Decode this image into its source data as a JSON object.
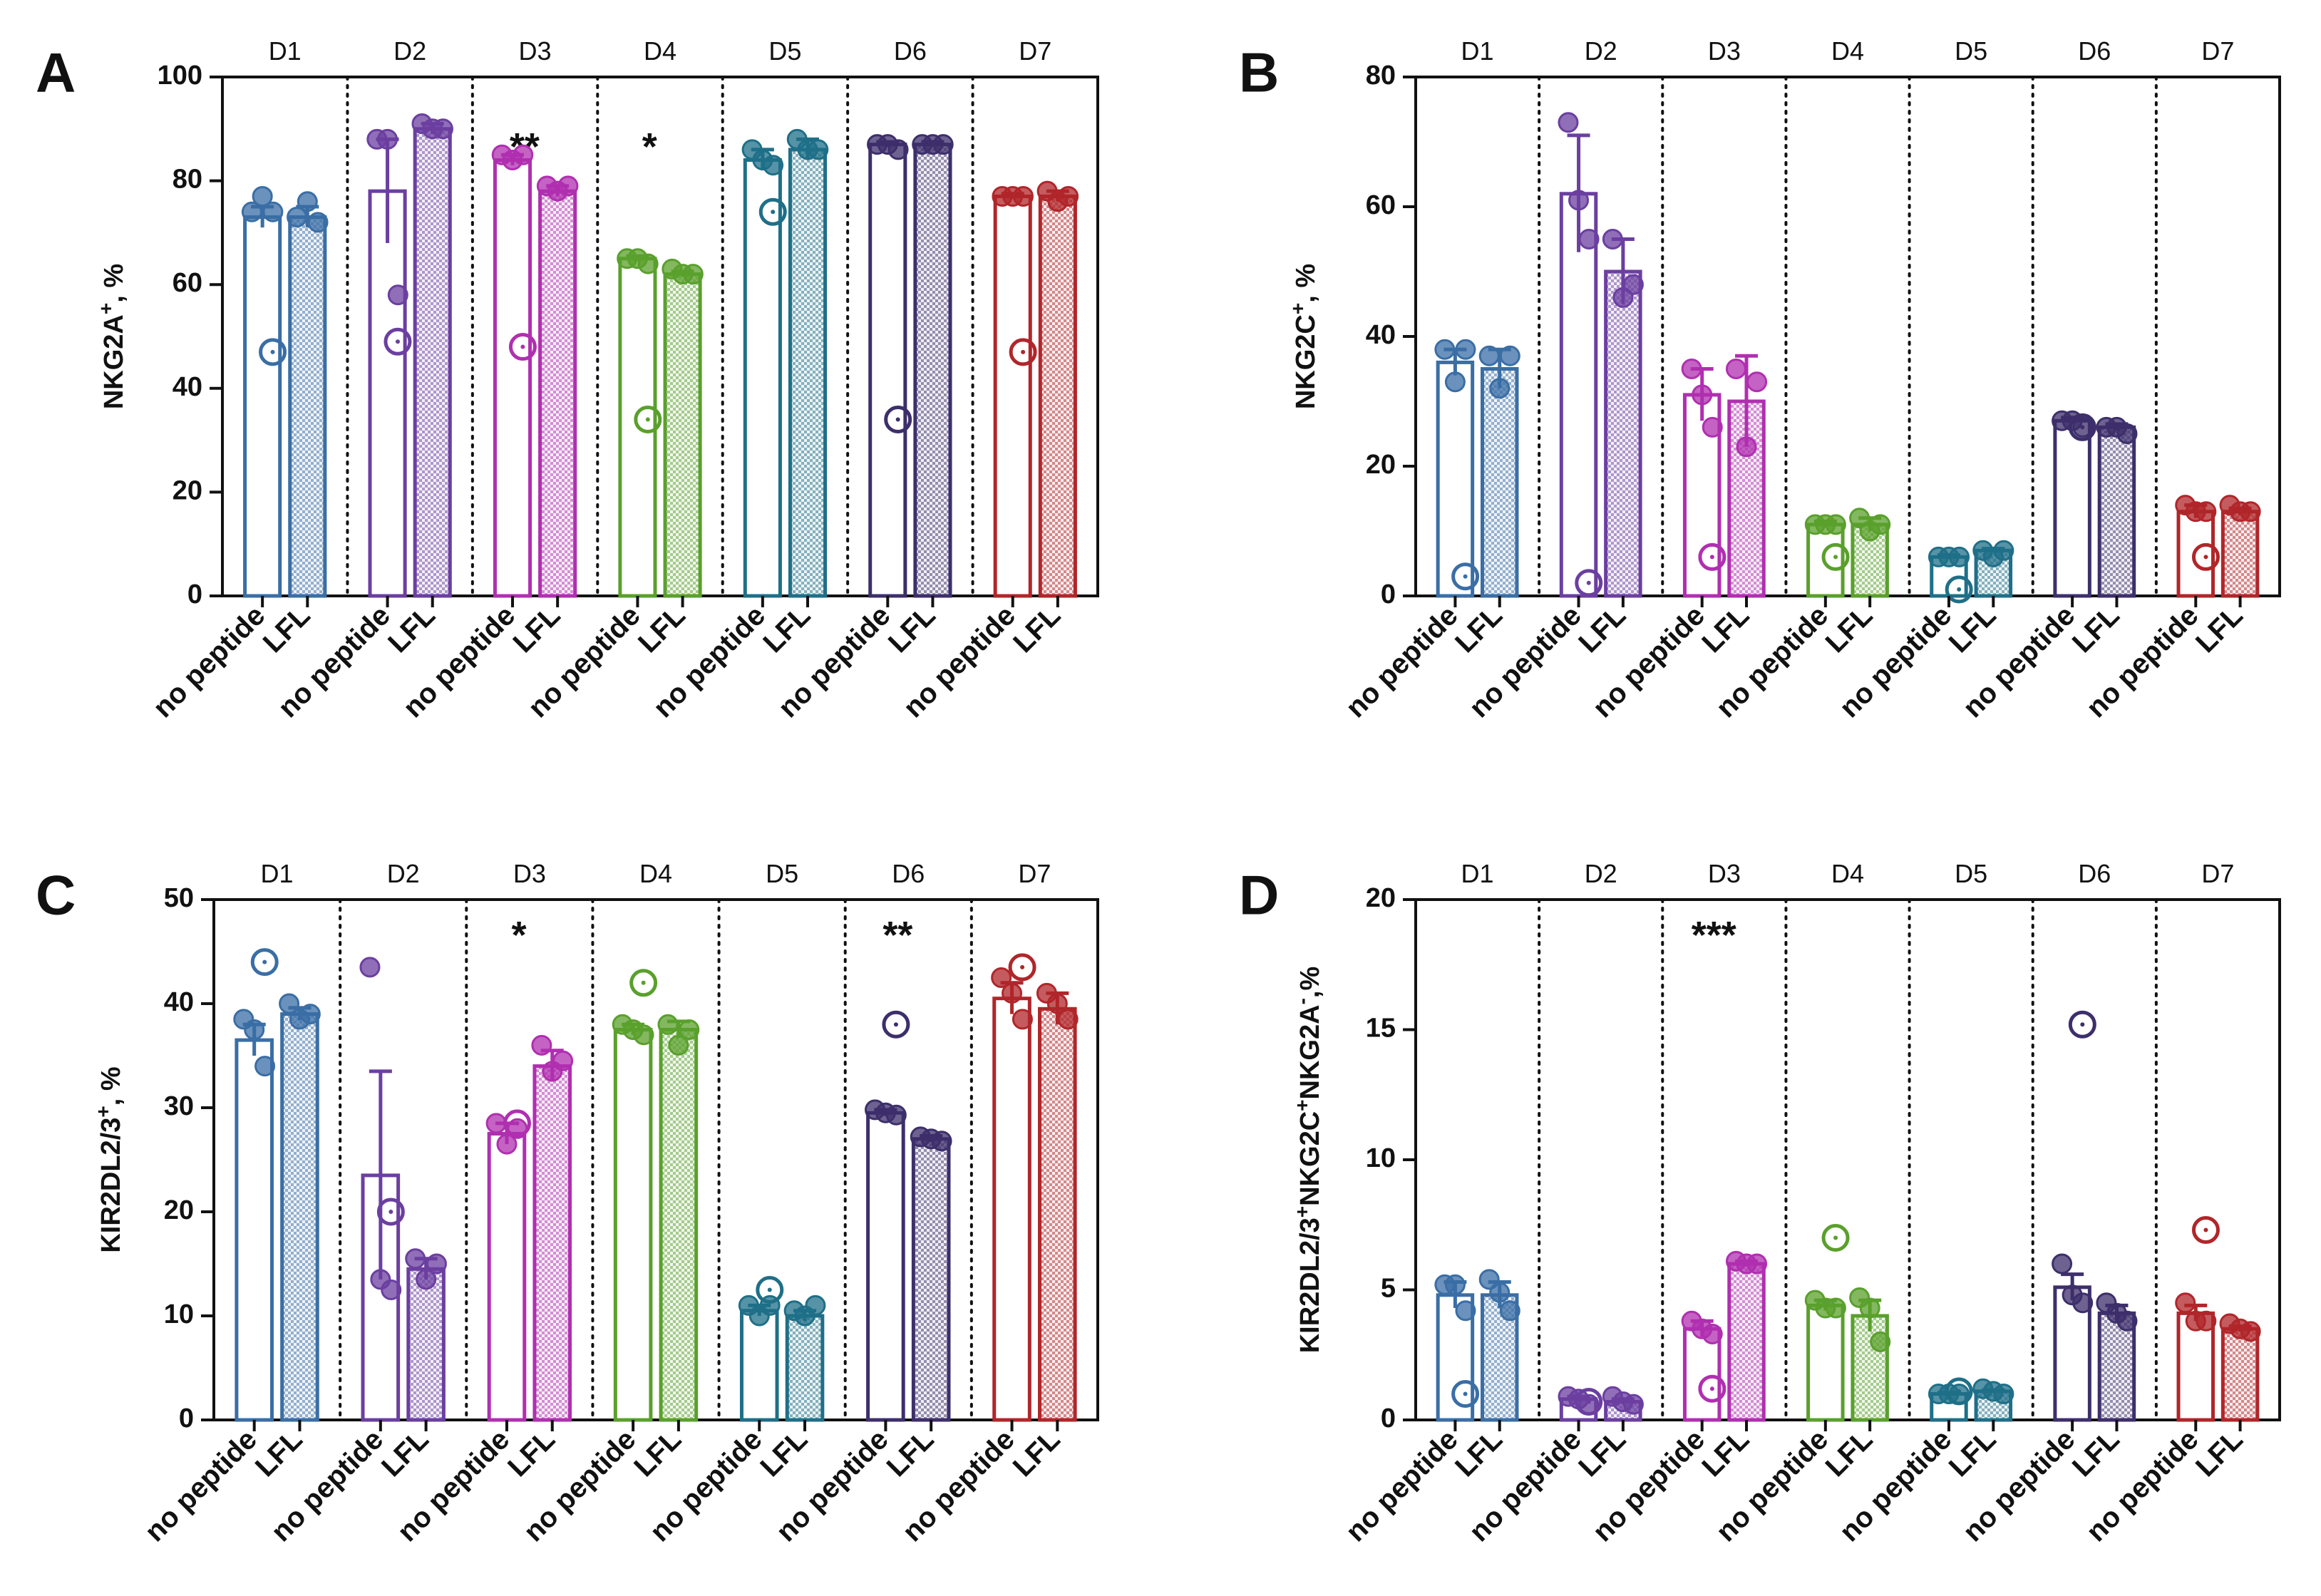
{
  "palette": {
    "D1": "#3a6ea5",
    "D2": "#6b3fa0",
    "D3": "#b02fb0",
    "D4": "#5aa02c",
    "D5": "#1f6f88",
    "D6": "#3d2f6b",
    "D7": "#b0262a"
  },
  "chart_data": [
    {
      "type": "bar",
      "letter": "A",
      "ylabel_main": "NKG2A",
      "ylabel_sup": "+",
      "ylabel_tail": ", %",
      "ylim": [
        0,
        100
      ],
      "yticks": [
        "0",
        "20",
        "40",
        "60",
        "80",
        "100"
      ],
      "donors": [
        "D1",
        "D2",
        "D3",
        "D4",
        "D5",
        "D6",
        "D7"
      ],
      "categories": [
        "no peptide",
        "LFL"
      ],
      "significance": [
        "",
        "",
        "**",
        "*",
        "",
        "",
        ""
      ],
      "series": [
        {
          "name": "D1",
          "values": [
            73,
            73
          ],
          "err": [
            2,
            2
          ],
          "points": [
            [
              74,
              77,
              74
            ],
            [
              73,
              76,
              72
            ]
          ],
          "open": 47
        },
        {
          "name": "D2",
          "values": [
            78,
            90
          ],
          "err": [
            10,
            1
          ],
          "points": [
            [
              88,
              88,
              58
            ],
            [
              91,
              90,
              90
            ]
          ],
          "open": 49
        },
        {
          "name": "D3",
          "values": [
            84,
            78
          ],
          "err": [
            1,
            1
          ],
          "points": [
            [
              85,
              84,
              85
            ],
            [
              79,
              78,
              79
            ]
          ],
          "open": 48
        },
        {
          "name": "D4",
          "values": [
            65,
            62
          ],
          "err": [
            0.5,
            0.5
          ],
          "points": [
            [
              65,
              65,
              64
            ],
            [
              63,
              62,
              62
            ]
          ],
          "open": 34
        },
        {
          "name": "D5",
          "values": [
            84,
            86
          ],
          "err": [
            2,
            2
          ],
          "points": [
            [
              86,
              84,
              83
            ],
            [
              88,
              86,
              86
            ]
          ],
          "open": 74
        },
        {
          "name": "D6",
          "values": [
            87,
            87
          ],
          "err": [
            0.5,
            0.5
          ],
          "points": [
            [
              87,
              87,
              86
            ],
            [
              87,
              87,
              87
            ]
          ],
          "open": 34
        },
        {
          "name": "D7",
          "values": [
            77,
            77
          ],
          "err": [
            0.5,
            1
          ],
          "points": [
            [
              77,
              77,
              77
            ],
            [
              78,
              76,
              77
            ]
          ],
          "open": 47
        }
      ]
    },
    {
      "type": "bar",
      "letter": "B",
      "ylabel_main": "NKG2C",
      "ylabel_sup": "+",
      "ylabel_tail": ", %",
      "ylim": [
        0,
        80
      ],
      "yticks": [
        "0",
        "20",
        "40",
        "60",
        "80"
      ],
      "donors": [
        "D1",
        "D2",
        "D3",
        "D4",
        "D5",
        "D6",
        "D7"
      ],
      "categories": [
        "no peptide",
        "LFL"
      ],
      "significance": [
        "",
        "",
        "",
        "",
        "",
        "",
        ""
      ],
      "series": [
        {
          "name": "D1",
          "values": [
            36,
            35
          ],
          "err": [
            2,
            3
          ],
          "points": [
            [
              38,
              33,
              38
            ],
            [
              37,
              32,
              37
            ]
          ],
          "open": 3
        },
        {
          "name": "D2",
          "values": [
            62,
            50
          ],
          "err": [
            9,
            5
          ],
          "points": [
            [
              73,
              61,
              55
            ],
            [
              55,
              46,
              48
            ]
          ],
          "open": 2
        },
        {
          "name": "D3",
          "values": [
            31,
            30
          ],
          "err": [
            4,
            7
          ],
          "points": [
            [
              35,
              31,
              26
            ],
            [
              35,
              23,
              33
            ]
          ],
          "open": 6
        },
        {
          "name": "D4",
          "values": [
            11,
            11
          ],
          "err": [
            0.5,
            1
          ],
          "points": [
            [
              11,
              11,
              11
            ],
            [
              12,
              10,
              11
            ]
          ],
          "open": 6
        },
        {
          "name": "D5",
          "values": [
            6,
            7
          ],
          "err": [
            0.3,
            0.3
          ],
          "points": [
            [
              6,
              6,
              6
            ],
            [
              7,
              6,
              7
            ]
          ],
          "open": 1
        },
        {
          "name": "D6",
          "values": [
            27,
            26
          ],
          "err": [
            0.5,
            0.5
          ],
          "points": [
            [
              27,
              27,
              26
            ],
            [
              26,
              26,
              25
            ]
          ],
          "open": 26
        },
        {
          "name": "D7",
          "values": [
            13,
            13
          ],
          "err": [
            1,
            0.5
          ],
          "points": [
            [
              14,
              13,
              13
            ],
            [
              14,
              13,
              13
            ]
          ],
          "open": 6
        }
      ]
    },
    {
      "type": "bar",
      "letter": "C",
      "ylabel_main": "KIR2DL2/3",
      "ylabel_sup": "+",
      "ylabel_tail": ", %",
      "ylim": [
        0,
        50
      ],
      "yticks": [
        "0",
        "10",
        "20",
        "30",
        "40",
        "50"
      ],
      "donors": [
        "D1",
        "D2",
        "D3",
        "D4",
        "D5",
        "D6",
        "D7"
      ],
      "categories": [
        "no peptide",
        "LFL"
      ],
      "significance": [
        "",
        "",
        "*",
        "",
        "",
        "**",
        ""
      ],
      "series": [
        {
          "name": "D1",
          "values": [
            36.5,
            39
          ],
          "err": [
            1.5,
            0.6
          ],
          "points": [
            [
              38.5,
              37.5,
              34
            ],
            [
              40,
              38.5,
              39
            ]
          ],
          "open": 44
        },
        {
          "name": "D2",
          "values": [
            23.5,
            14.5
          ],
          "err": [
            10,
            1
          ],
          "points": [
            [
              43.5,
              13.5,
              12.5
            ],
            [
              15.5,
              13.5,
              15
            ]
          ],
          "open": 20
        },
        {
          "name": "D3",
          "values": [
            27.5,
            34
          ],
          "err": [
            1,
            1.5
          ],
          "points": [
            [
              28.5,
              26.5,
              28
            ],
            [
              36,
              33.5,
              34.5
            ]
          ],
          "open": 28.5
        },
        {
          "name": "D4",
          "values": [
            37.5,
            37.5
          ],
          "err": [
            0.5,
            0.8
          ],
          "points": [
            [
              38,
              37.5,
              37
            ],
            [
              38,
              36,
              37.5
            ]
          ],
          "open": 42
        },
        {
          "name": "D5",
          "values": [
            10.5,
            10
          ],
          "err": [
            0.5,
            0.5
          ],
          "points": [
            [
              11,
              10,
              11
            ],
            [
              10.5,
              10,
              11
            ]
          ],
          "open": 12.5
        },
        {
          "name": "D6",
          "values": [
            29.5,
            27
          ],
          "err": [
            0.3,
            0.3
          ],
          "points": [
            [
              29.8,
              29.5,
              29.3
            ],
            [
              27.2,
              27,
              26.8
            ]
          ],
          "open": 38
        },
        {
          "name": "D7",
          "values": [
            40.5,
            39.5
          ],
          "err": [
            1.5,
            1.5
          ],
          "points": [
            [
              42.5,
              41,
              38.5
            ],
            [
              41,
              40,
              38.5
            ]
          ],
          "open": 43.5
        }
      ]
    },
    {
      "type": "bar",
      "letter": "D",
      "ylabel_main": "KIR2DL2/3",
      "ylabel_sup": "+",
      "ylabel_mid": "NKG2C",
      "ylabel_sup2": "+",
      "ylabel_mid2": "NKG2A",
      "ylabel_sup3": "-",
      "ylabel_tail": ",%",
      "ylim": [
        0,
        20
      ],
      "yticks": [
        "0",
        "5",
        "10",
        "15",
        "20"
      ],
      "donors": [
        "D1",
        "D2",
        "D3",
        "D4",
        "D5",
        "D6",
        "D7"
      ],
      "categories": [
        "no peptide",
        "LFL"
      ],
      "significance": [
        "",
        "",
        "***",
        "",
        "",
        "",
        ""
      ],
      "series": [
        {
          "name": "D1",
          "values": [
            4.8,
            4.8
          ],
          "err": [
            0.5,
            0.5
          ],
          "points": [
            [
              5.2,
              5.2,
              4.2
            ],
            [
              5.4,
              4.9,
              4.2
            ]
          ],
          "open": 1
        },
        {
          "name": "D2",
          "values": [
            0.8,
            0.7
          ],
          "err": [
            0.1,
            0.1
          ],
          "points": [
            [
              0.9,
              0.8,
              0.6
            ],
            [
              0.9,
              0.7,
              0.6
            ]
          ],
          "open": 0.7
        },
        {
          "name": "D3",
          "values": [
            3.5,
            6
          ],
          "err": [
            0.3,
            0.1
          ],
          "points": [
            [
              3.8,
              3.5,
              3.3
            ],
            [
              6.1,
              6,
              6
            ]
          ],
          "open": 1.2
        },
        {
          "name": "D4",
          "values": [
            4.4,
            4
          ],
          "err": [
            0.2,
            0.6
          ],
          "points": [
            [
              4.6,
              4.3,
              4.3
            ],
            [
              4.7,
              4.3,
              3
            ]
          ],
          "open": 7
        },
        {
          "name": "D5",
          "values": [
            1,
            1.1
          ],
          "err": [
            0.05,
            0.05
          ],
          "points": [
            [
              1,
              1,
              1
            ],
            [
              1.2,
              1.1,
              1
            ]
          ],
          "open": 1.1
        },
        {
          "name": "D6",
          "values": [
            5.1,
            4.1
          ],
          "err": [
            0.5,
            0.3
          ],
          "points": [
            [
              6,
              4.8,
              4.5
            ],
            [
              4.5,
              4.1,
              3.8
            ]
          ],
          "open": 15.2
        },
        {
          "name": "D7",
          "values": [
            4.1,
            3.5
          ],
          "err": [
            0.3,
            0.1
          ],
          "points": [
            [
              4.5,
              3.8,
              3.8
            ],
            [
              3.7,
              3.5,
              3.4
            ]
          ],
          "open": 7.3
        }
      ]
    }
  ]
}
